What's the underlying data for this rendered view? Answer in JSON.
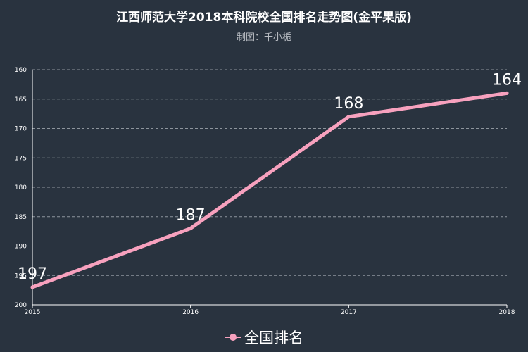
{
  "chart_data": {
    "type": "line",
    "title": "江西师范大学2018本科院校全国排名走势图(金平果版)",
    "subtitle": "制图：千小栀",
    "x": [
      "2015",
      "2016",
      "2017",
      "2018"
    ],
    "series": [
      {
        "name": "全国排名",
        "values": [
          197,
          187,
          168,
          164
        ]
      }
    ],
    "ylim": [
      160,
      200
    ],
    "y_inverted": true,
    "yticks": [
      160,
      165,
      170,
      175,
      180,
      185,
      190,
      195,
      200
    ],
    "grid": true,
    "legend_position": "bottom-center",
    "line_color": "#f7a1be"
  }
}
